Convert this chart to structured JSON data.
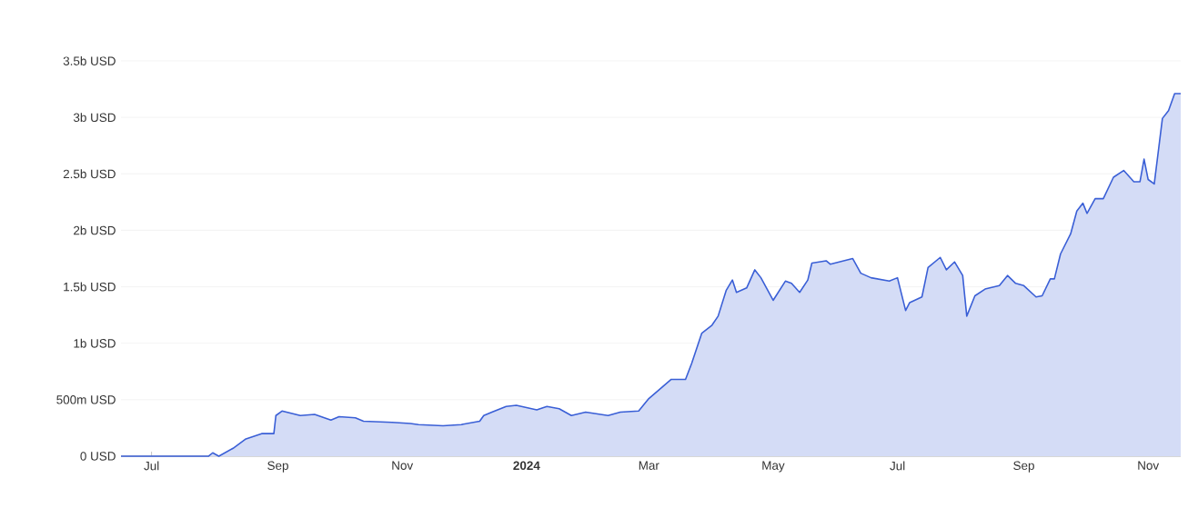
{
  "chart_data": {
    "type": "area",
    "x": [
      "2023-06-16",
      "2023-07-29",
      "2023-07-31",
      "2023-08-03",
      "2023-08-10",
      "2023-08-16",
      "2023-08-24",
      "2023-08-30",
      "2023-08-31",
      "2023-09-03",
      "2023-09-12",
      "2023-09-19",
      "2023-09-27",
      "2023-10-01",
      "2023-10-09",
      "2023-10-13",
      "2023-10-27",
      "2023-11-05",
      "2023-11-09",
      "2023-11-21",
      "2023-11-30",
      "2023-12-09",
      "2023-12-11",
      "2023-12-15",
      "2023-12-22",
      "2023-12-27",
      "2024-01-06",
      "2024-01-11",
      "2024-01-17",
      "2024-01-23",
      "2024-01-30",
      "2024-02-10",
      "2024-02-16",
      "2024-02-25",
      "2024-03-01",
      "2024-03-12",
      "2024-03-19",
      "2024-03-22",
      "2024-03-27",
      "2024-04-01",
      "2024-04-04",
      "2024-04-08",
      "2024-04-11",
      "2024-04-13",
      "2024-04-18",
      "2024-04-22",
      "2024-04-25",
      "2024-05-01",
      "2024-05-07",
      "2024-05-10",
      "2024-05-14",
      "2024-05-18",
      "2024-05-20",
      "2024-05-27",
      "2024-05-29",
      "2024-06-09",
      "2024-06-13",
      "2024-06-18",
      "2024-06-27",
      "2024-07-01",
      "2024-07-05",
      "2024-07-07",
      "2024-07-13",
      "2024-07-16",
      "2024-07-22",
      "2024-07-25",
      "2024-07-29",
      "2024-08-02",
      "2024-08-04",
      "2024-08-08",
      "2024-08-13",
      "2024-08-20",
      "2024-08-24",
      "2024-08-28",
      "2024-09-01",
      "2024-09-07",
      "2024-09-10",
      "2024-09-14",
      "2024-09-16",
      "2024-09-19",
      "2024-09-24",
      "2024-09-27",
      "2024-09-30",
      "2024-10-02",
      "2024-10-06",
      "2024-10-10",
      "2024-10-15",
      "2024-10-20",
      "2024-10-25",
      "2024-10-28",
      "2024-10-30",
      "2024-11-01",
      "2024-11-04",
      "2024-11-08",
      "2024-11-11",
      "2024-11-14",
      "2024-11-17"
    ],
    "values": [
      0,
      0,
      30000000,
      0,
      70000000,
      150000000,
      200000000,
      200000000,
      360000000,
      400000000,
      360000000,
      370000000,
      320000000,
      350000000,
      340000000,
      310000000,
      300000000,
      290000000,
      280000000,
      270000000,
      280000000,
      310000000,
      360000000,
      390000000,
      440000000,
      450000000,
      410000000,
      440000000,
      420000000,
      360000000,
      390000000,
      360000000,
      390000000,
      400000000,
      510000000,
      680000000,
      680000000,
      820000000,
      1090000000,
      1160000000,
      1240000000,
      1470000000,
      1560000000,
      1450000000,
      1490000000,
      1650000000,
      1580000000,
      1380000000,
      1550000000,
      1530000000,
      1450000000,
      1560000000,
      1710000000,
      1730000000,
      1700000000,
      1750000000,
      1620000000,
      1580000000,
      1550000000,
      1580000000,
      1290000000,
      1360000000,
      1410000000,
      1670000000,
      1760000000,
      1650000000,
      1720000000,
      1600000000,
      1240000000,
      1420000000,
      1480000000,
      1510000000,
      1600000000,
      1530000000,
      1510000000,
      1410000000,
      1420000000,
      1570000000,
      1570000000,
      1790000000,
      1970000000,
      2170000000,
      2240000000,
      2150000000,
      2280000000,
      2280000000,
      2470000000,
      2530000000,
      2430000000,
      2430000000,
      2630000000,
      2450000000,
      2410000000,
      2990000000,
      3060000000,
      3210000000,
      3210000000
    ],
    "color": "#3a5fd6",
    "xlim": [
      "2023-06-16",
      "2024-11-17"
    ],
    "xticks": [
      {
        "value": "2023-07-01",
        "label": "Jul"
      },
      {
        "value": "2023-09-01",
        "label": "Sep"
      },
      {
        "value": "2023-11-01",
        "label": "Nov"
      },
      {
        "value": "2024-01-01",
        "label": "2024"
      },
      {
        "value": "2024-03-01",
        "label": "Mar"
      },
      {
        "value": "2024-05-01",
        "label": "May"
      },
      {
        "value": "2024-07-01",
        "label": "Jul"
      },
      {
        "value": "2024-09-01",
        "label": "Sep"
      },
      {
        "value": "2024-11-01",
        "label": "Nov"
      }
    ],
    "ylim": [
      0,
      3500000000
    ],
    "yticks": [
      {
        "value": 0,
        "label": "0 USD"
      },
      {
        "value": 500000000,
        "label": "500m USD"
      },
      {
        "value": 1000000000,
        "label": "1b USD"
      },
      {
        "value": 1500000000,
        "label": "1.5b USD"
      },
      {
        "value": 2000000000,
        "label": "2b USD"
      },
      {
        "value": 2500000000,
        "label": "2.5b USD"
      },
      {
        "value": 3000000000,
        "label": "3b USD"
      },
      {
        "value": 3500000000,
        "label": "3.5b USD"
      }
    ],
    "grid": "y"
  }
}
